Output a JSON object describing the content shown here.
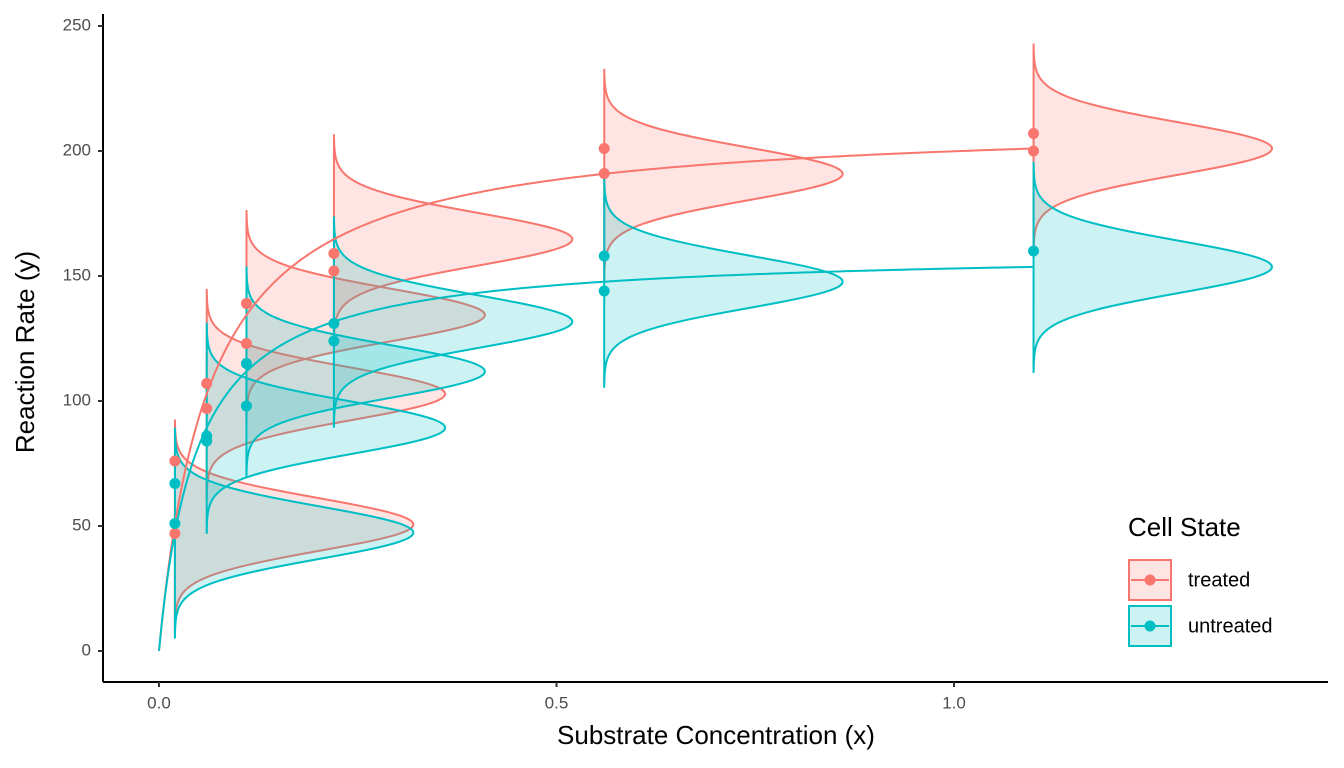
{
  "chart_data": {
    "type": "scatter",
    "x_label": "Substrate Concentration (x)",
    "y_label": "Reaction Rate (y)",
    "legend_title": "Cell State",
    "legend_position": "bottom-right",
    "xlim": [
      -0.0704,
      1.4704
    ],
    "ylim": [
      -12.4,
      254.8
    ],
    "xticks": [
      {
        "value": 0,
        "label": "0.0"
      },
      0.5,
      {
        "value": 1,
        "label": "1.0"
      }
    ],
    "yticks": [
      0,
      50,
      100,
      150,
      200,
      250
    ],
    "grid": false,
    "density": {
      "sd": 10.5,
      "width": 0.3
    },
    "series": [
      {
        "name": "treated",
        "color": "#F8766D",
        "x": [
          0.02,
          0.02,
          0.06,
          0.06,
          0.11,
          0.11,
          0.22,
          0.22,
          0.56,
          0.56,
          1.1,
          1.1
        ],
        "values": [
          76,
          47,
          97,
          107,
          123,
          139,
          159,
          152,
          191,
          201,
          207,
          200
        ],
        "fit": {
          "vm": 212.7,
          "k": 0.0641
        }
      },
      {
        "name": "untreated",
        "color": "#00BFC4",
        "x": [
          0.02,
          0.02,
          0.06,
          0.06,
          0.11,
          0.11,
          0.22,
          0.22,
          0.56,
          0.56,
          1.1
        ],
        "values": [
          67,
          51,
          84,
          86,
          98,
          115,
          131,
          124,
          144,
          158,
          160
        ],
        "fit": {
          "vm": 160.3,
          "k": 0.0477
        }
      }
    ]
  }
}
